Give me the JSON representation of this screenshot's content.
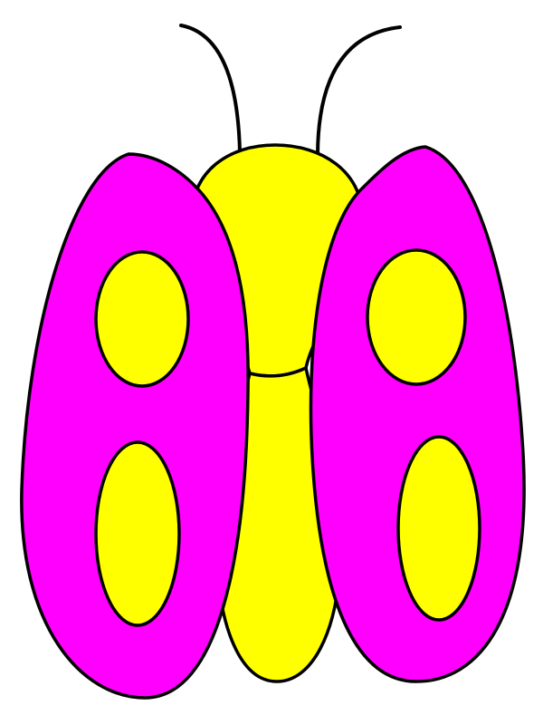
{
  "colors": {
    "background": "#ffffff",
    "wing": "#ff00ff",
    "body": "#ffff00",
    "spot": "#ffff00",
    "outline": "#000000"
  },
  "illustration": {
    "subject": "butterfly",
    "wings": 2,
    "spots_per_wing": 2
  }
}
